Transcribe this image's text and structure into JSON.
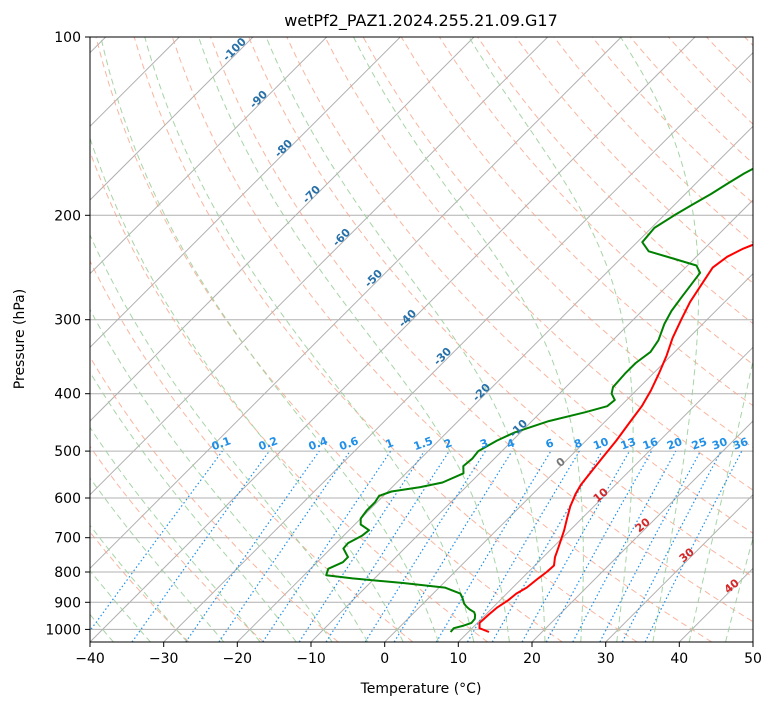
{
  "chart_data": {
    "type": "line",
    "title": "wetPf2_PAZ1.2024.255.21.09.G17",
    "xlabel": "Temperature (°C)",
    "ylabel": "Pressure (hPa)",
    "xlim": [
      -40,
      50
    ],
    "ylim": [
      1050,
      100
    ],
    "y_scale": "log",
    "grid": true,
    "x_ticks": [
      "−40",
      "−30",
      "−20",
      "−10",
      "0",
      "10",
      "20",
      "30",
      "40",
      "50"
    ],
    "y_ticks": [
      "100",
      "200",
      "300",
      "400",
      "500",
      "600",
      "700",
      "800",
      "900",
      "1000"
    ],
    "series": [
      {
        "color": "#ff0000",
        "points": [
          [
            12.8,
            1010
          ],
          [
            11.0,
            995
          ],
          [
            10.3,
            975
          ],
          [
            10.4,
            945
          ],
          [
            10.6,
            918
          ],
          [
            11.1,
            893
          ],
          [
            11.3,
            870
          ],
          [
            11.9,
            850
          ],
          [
            12.2,
            820
          ],
          [
            12.5,
            800
          ],
          [
            12.6,
            780
          ],
          [
            11.6,
            755
          ],
          [
            11.0,
            735
          ],
          [
            10.2,
            710
          ],
          [
            9.2,
            680
          ],
          [
            8.0,
            650
          ],
          [
            6.8,
            620
          ],
          [
            5.8,
            590
          ],
          [
            5.3,
            570
          ],
          [
            4.9,
            540
          ],
          [
            4.5,
            510
          ],
          [
            4.1,
            480
          ],
          [
            3.5,
            450
          ],
          [
            2.9,
            420
          ],
          [
            2.0,
            395
          ],
          [
            0.8,
            370
          ],
          [
            -0.6,
            345
          ],
          [
            -2.2,
            322
          ],
          [
            -3.5,
            300
          ],
          [
            -4.7,
            280
          ],
          [
            -5.5,
            262
          ],
          [
            -6.3,
            245
          ],
          [
            -5.8,
            235
          ],
          [
            -4.8,
            228
          ],
          [
            -2.7,
            219
          ],
          [
            -0.2,
            210
          ],
          [
            2.4,
            202
          ],
          [
            4.8,
            195
          ],
          [
            7.1,
            187
          ],
          [
            9.1,
            178
          ],
          [
            10.6,
            170
          ],
          [
            11.7,
            162
          ],
          [
            12.5,
            154
          ],
          [
            13.6,
            147
          ],
          [
            14.6,
            140
          ],
          [
            15.7,
            134
          ],
          [
            17.4,
            128
          ],
          [
            20.3,
            122
          ],
          [
            22.9,
            117
          ],
          [
            24.2,
            112
          ],
          [
            25.2,
            107
          ],
          [
            26.1,
            103
          ],
          [
            27.0,
            100
          ]
        ]
      },
      {
        "color": "#008000",
        "points": [
          [
            7.6,
            1010
          ],
          [
            7.5,
            995
          ],
          [
            8.5,
            985
          ],
          [
            9.2,
            975
          ],
          [
            9.1,
            960
          ],
          [
            8.6,
            945
          ],
          [
            8.1,
            935
          ],
          [
            7.1,
            925
          ],
          [
            6.3,
            915
          ],
          [
            5.6,
            905
          ],
          [
            4.6,
            885
          ],
          [
            3.7,
            870
          ],
          [
            0.8,
            850
          ],
          [
            -5.5,
            835
          ],
          [
            -13.0,
            820
          ],
          [
            -17.0,
            810
          ],
          [
            -17.6,
            790
          ],
          [
            -16.5,
            770
          ],
          [
            -16.5,
            755
          ],
          [
            -18.3,
            730
          ],
          [
            -18.4,
            715
          ],
          [
            -17.5,
            695
          ],
          [
            -17.3,
            680
          ],
          [
            -19.2,
            665
          ],
          [
            -20.0,
            650
          ],
          [
            -20.3,
            630
          ],
          [
            -20.3,
            610
          ],
          [
            -20.6,
            595
          ],
          [
            -19.5,
            585
          ],
          [
            -16.2,
            575
          ],
          [
            -13.8,
            565
          ],
          [
            -12.2,
            545
          ],
          [
            -13.2,
            530
          ],
          [
            -13.0,
            515
          ],
          [
            -13.2,
            500
          ],
          [
            -12.1,
            480
          ],
          [
            -10.8,
            465
          ],
          [
            -7.7,
            445
          ],
          [
            -4.0,
            430
          ],
          [
            -1.8,
            420
          ],
          [
            -1.6,
            410
          ],
          [
            -2.9,
            400
          ],
          [
            -3.6,
            390
          ],
          [
            -3.8,
            370
          ],
          [
            -3.8,
            355
          ],
          [
            -3.3,
            340
          ],
          [
            -3.8,
            325
          ],
          [
            -5.2,
            305
          ],
          [
            -6.0,
            290
          ],
          [
            -6.5,
            275
          ],
          [
            -6.9,
            262
          ],
          [
            -7.3,
            250
          ],
          [
            -8.8,
            243
          ],
          [
            -12.6,
            237
          ],
          [
            -17.2,
            230
          ],
          [
            -19.3,
            222
          ],
          [
            -19.6,
            210
          ],
          [
            -18.6,
            200
          ],
          [
            -17.6,
            192
          ],
          [
            -16.5,
            184
          ],
          [
            -15.7,
            177
          ],
          [
            -14.8,
            170
          ],
          [
            -13.3,
            162
          ],
          [
            -11.6,
            155
          ],
          [
            -10.0,
            149
          ],
          [
            -8.3,
            143
          ],
          [
            -6.8,
            137
          ],
          [
            -5.3,
            131
          ],
          [
            -3.4,
            124
          ],
          [
            -2.6,
            120
          ],
          [
            -1.8,
            116
          ],
          [
            -1.3,
            112
          ],
          [
            -0.6,
            108
          ],
          [
            0.0,
            104
          ],
          [
            0.6,
            100
          ]
        ]
      }
    ],
    "dry_adiabat_labels": [
      "-100",
      "-90",
      "-80",
      "-70",
      "-60",
      "-50",
      "-40",
      "-30",
      "-20",
      "-10"
    ],
    "mixing_ratio_labels": [
      "0.1",
      "0.2",
      "0.4",
      "0.6",
      "1",
      "1.5",
      "2",
      "3",
      "4",
      "6",
      "8",
      "10",
      "13",
      "16",
      "20",
      "25",
      "30",
      "36"
    ],
    "moist_adiabat_labels": [
      "0",
      "10",
      "20",
      "30",
      "40"
    ],
    "colors": {
      "temperature": "#ff0000",
      "dewpoint": "#008000",
      "isotherm": "#b0b0b0",
      "dry_adiabat": "#f8a287",
      "moist_adiabat": "#9ccf9c",
      "mixing_ratio": "#1f8fe8",
      "dry_label": "#2870a8",
      "moist_label": "#d62728"
    }
  }
}
